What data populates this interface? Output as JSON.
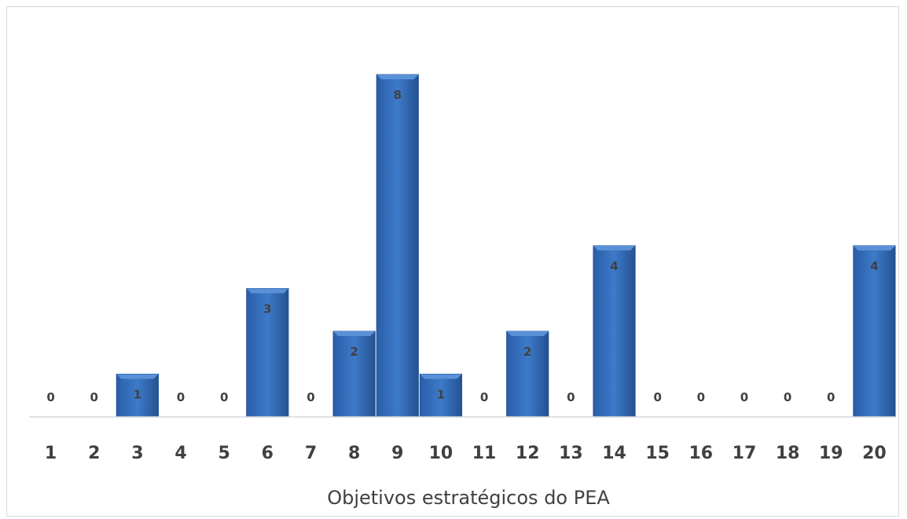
{
  "chart_data": {
    "type": "bar",
    "categories": [
      "1",
      "2",
      "3",
      "4",
      "5",
      "6",
      "7",
      "8",
      "9",
      "10",
      "11",
      "12",
      "13",
      "14",
      "15",
      "16",
      "17",
      "18",
      "19",
      "20"
    ],
    "values": [
      0,
      0,
      1,
      0,
      0,
      3,
      0,
      2,
      8,
      1,
      0,
      2,
      0,
      4,
      0,
      0,
      0,
      0,
      0,
      4
    ],
    "xlabel": "Objetivos estratégicos do PEA",
    "ylabel": "",
    "ylim": [
      0,
      8
    ],
    "grid": false,
    "data_labels": true,
    "bar_color": "#2f67b5",
    "bar_color_light": "#5a90d8",
    "bar_color_dark": "#1f4f93"
  }
}
